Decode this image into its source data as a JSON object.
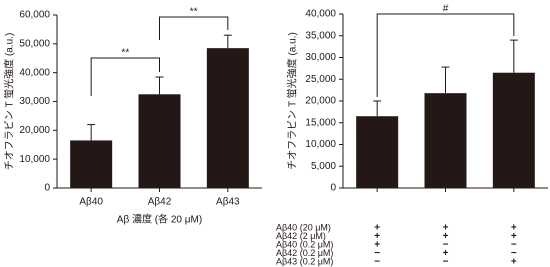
{
  "chart_data": [
    {
      "type": "bar",
      "y_label": "チオフラビン T 蛍光強度 (a.u.)",
      "x_label": "Aβ 濃度 (各 20 μM)",
      "categories": [
        "Aβ40",
        "Aβ42",
        "Aβ43"
      ],
      "values": [
        16500,
        32500,
        48500
      ],
      "errors": [
        5500,
        6000,
        4500
      ],
      "color": "#231815",
      "ylim": [
        0,
        60000
      ],
      "yticks": [
        0,
        {
          "value": 10000,
          "label": "10,000"
        },
        {
          "value": 20000,
          "label": "20,000"
        },
        {
          "value": 30000,
          "label": "30,000"
        },
        {
          "value": 40000,
          "label": "40,000"
        },
        {
          "value": 50000,
          "label": "50,000"
        },
        {
          "value": 60000,
          "label": "60,000"
        }
      ],
      "annotations": [
        "**",
        "**"
      ]
    },
    {
      "type": "bar",
      "y_label": "チオフラビン T 蛍光強度 (a.u.)",
      "values": [
        16500,
        21800,
        26500
      ],
      "errors": [
        3500,
        6000,
        7500
      ],
      "color": "#231815",
      "ylim": [
        0,
        40000
      ],
      "yticks": [
        0,
        {
          "value": 5000,
          "label": "5,000"
        },
        {
          "value": 10000,
          "label": "10,000"
        },
        {
          "value": 15000,
          "label": "15,000"
        },
        {
          "value": 20000,
          "label": "20,000"
        },
        {
          "value": 25000,
          "label": "25,000"
        },
        {
          "value": 30000,
          "label": "30,000"
        },
        {
          "value": 35000,
          "label": "35,000"
        },
        {
          "value": 40000,
          "label": "40,000"
        }
      ],
      "annotations": [
        "#"
      ],
      "conditions": [
        {
          "label": "Aβ40 (20 μM)",
          "marks": [
            "+",
            "+",
            "+"
          ]
        },
        {
          "label": "Aβ42 (2 μM)",
          "marks": [
            "+",
            "+",
            "+"
          ]
        },
        {
          "label": "Aβ40 (0.2 μM)",
          "marks": [
            "+",
            "−",
            "−"
          ]
        },
        {
          "label": "Aβ42 (0.2 μM)",
          "marks": [
            "−",
            "+",
            "−"
          ]
        },
        {
          "label": "Aβ43 (0.2 μM)",
          "marks": [
            "−",
            "−",
            "+"
          ]
        }
      ]
    }
  ]
}
